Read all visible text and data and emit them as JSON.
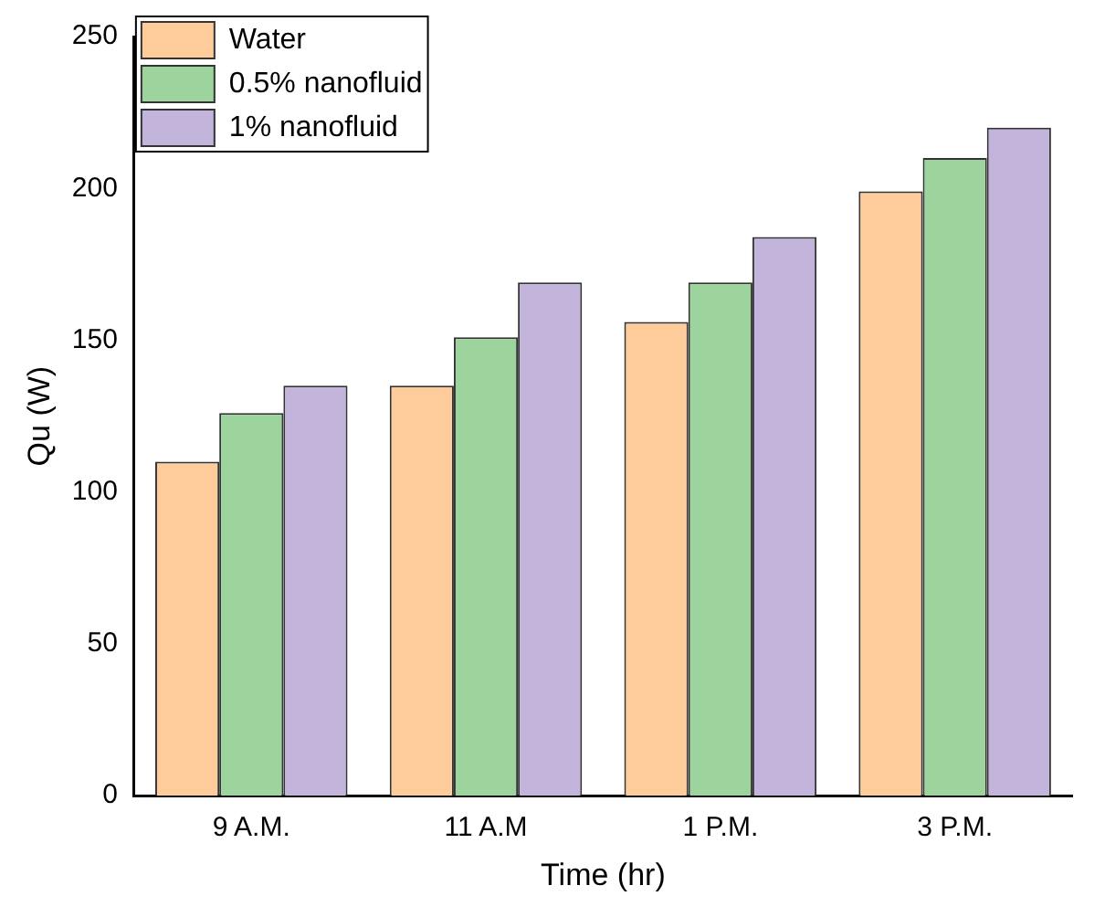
{
  "chart_data": {
    "type": "bar",
    "xlabel": "Time (hr)",
    "ylabel": "Qu (W)",
    "categories": [
      "9 A.M.",
      "11 A.M",
      "1 P.M.",
      "3 P.M."
    ],
    "series": [
      {
        "name": "Water",
        "color": "#fdcc9a",
        "values": [
          110,
          135,
          156,
          199
        ]
      },
      {
        "name": "0.5% nanofluid",
        "color": "#9dd49d",
        "values": [
          126,
          151,
          169,
          210
        ]
      },
      {
        "name": "1% nanofluid",
        "color": "#c2b4da",
        "values": [
          135,
          169,
          184,
          220
        ]
      }
    ],
    "ylim": [
      0,
      250
    ],
    "yticks": [
      0,
      50,
      100,
      150,
      200,
      250
    ],
    "grid": false,
    "legend": "top left"
  }
}
